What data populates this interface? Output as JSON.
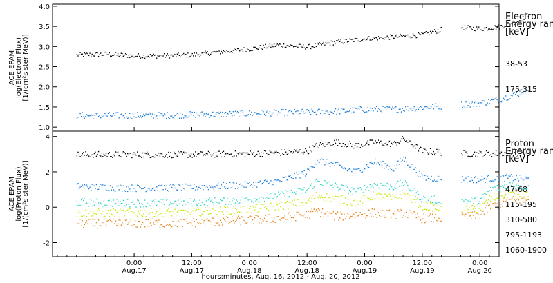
{
  "chart_data": [
    {
      "type": "scatter",
      "panel": "electron",
      "ylabel_lines": [
        "ACE EPAM",
        "log(Electron Flux)",
        "[1/(cm²s ster MeV)]"
      ],
      "legend_title": [
        "Electron",
        "Energy ranges",
        "[keV]"
      ],
      "ylim": [
        0.9,
        4.05
      ],
      "yticks": [
        1.0,
        1.5,
        2.0,
        2.5,
        3.0,
        3.5,
        4.0
      ],
      "ytick_labels": [
        "1.0",
        "1.5",
        "2.0",
        "2.5",
        "3.0",
        "3.5",
        "4.0"
      ],
      "series": [
        {
          "name": "38-53",
          "color": "#000000",
          "x": [
            0,
            6,
            12,
            18,
            24,
            30,
            36,
            42,
            48,
            54,
            60,
            66,
            72,
            78,
            84,
            88,
            92,
            94
          ],
          "y": [
            2.8,
            2.82,
            2.78,
            2.78,
            2.8,
            2.88,
            2.95,
            3.05,
            3.0,
            3.12,
            3.2,
            3.25,
            3.3,
            3.5,
            3.45,
            3.5,
            3.65,
            3.8
          ]
        },
        {
          "name": "175-315",
          "color": "#1f7fd6",
          "x": [
            0,
            6,
            12,
            18,
            24,
            30,
            36,
            42,
            48,
            54,
            60,
            66,
            72,
            78,
            84,
            88,
            92,
            94
          ],
          "y": [
            1.3,
            1.3,
            1.3,
            1.3,
            1.32,
            1.33,
            1.35,
            1.37,
            1.38,
            1.4,
            1.45,
            1.45,
            1.5,
            1.55,
            1.6,
            1.7,
            1.85,
            2.0
          ]
        }
      ]
    },
    {
      "type": "scatter",
      "panel": "proton",
      "ylabel_lines": [
        "ACE EPAM",
        "log(Proton Flux)",
        "[1/(cm²s ster MeV)]"
      ],
      "legend_title": [
        "Proton",
        "Energy ranges",
        "[keV]"
      ],
      "ylim": [
        -2.8,
        4.3
      ],
      "yticks": [
        -2,
        0,
        2,
        4
      ],
      "ytick_labels": [
        "-2",
        "0",
        "2",
        "4"
      ],
      "series": [
        {
          "name": "47-68",
          "color": "#000000",
          "x": [
            0,
            12,
            24,
            36,
            42,
            48,
            50,
            54,
            58,
            62,
            66,
            68,
            72,
            78,
            82,
            84,
            86,
            90,
            94
          ],
          "y": [
            3.0,
            3.0,
            3.0,
            3.05,
            3.1,
            3.2,
            3.5,
            3.7,
            3.5,
            3.7,
            3.6,
            3.9,
            3.2,
            3.1,
            3.05,
            3.05,
            3.05,
            3.1,
            3.2
          ]
        },
        {
          "name": "115-195",
          "color": "#1f7fd6",
          "x": [
            0,
            12,
            24,
            36,
            42,
            48,
            50,
            54,
            58,
            62,
            66,
            68,
            72,
            78,
            82,
            84,
            86,
            90,
            94
          ],
          "y": [
            1.2,
            1.1,
            1.15,
            1.3,
            1.5,
            2.0,
            2.7,
            2.4,
            2.0,
            2.6,
            2.2,
            2.8,
            1.7,
            1.6,
            1.6,
            1.6,
            1.65,
            1.7,
            1.6
          ]
        },
        {
          "name": "310-580",
          "color": "#2dd5c4",
          "x": [
            0,
            12,
            24,
            36,
            42,
            48,
            50,
            54,
            58,
            62,
            66,
            68,
            72,
            78,
            82,
            84,
            86,
            90,
            94
          ],
          "y": [
            0.3,
            0.25,
            0.3,
            0.45,
            0.7,
            1.0,
            1.5,
            1.2,
            0.9,
            1.3,
            1.2,
            1.4,
            0.5,
            0.4,
            0.4,
            0.4,
            1.0,
            1.3,
            1.2
          ]
        },
        {
          "name": "795-1193",
          "color": "#c5e800",
          "x": [
            0,
            12,
            24,
            36,
            42,
            48,
            50,
            54,
            58,
            62,
            66,
            68,
            72,
            78,
            82,
            84,
            86,
            90,
            94
          ],
          "y": [
            -0.3,
            -0.3,
            -0.25,
            -0.1,
            0.1,
            0.3,
            0.7,
            0.5,
            0.3,
            0.7,
            0.5,
            0.8,
            0.1,
            -0.1,
            -0.1,
            -0.05,
            0.5,
            0.8,
            0.7
          ]
        },
        {
          "name": "1060-1900",
          "color": "#e5861f",
          "x": [
            0,
            12,
            24,
            36,
            42,
            48,
            50,
            54,
            58,
            62,
            66,
            68,
            72,
            78,
            82,
            84,
            86,
            90,
            94
          ],
          "y": [
            -0.9,
            -0.9,
            -0.85,
            -0.7,
            -0.6,
            -0.4,
            -0.2,
            -0.5,
            -0.4,
            -0.3,
            -0.4,
            -0.3,
            -0.6,
            -0.6,
            -0.5,
            -0.4,
            0.0,
            0.4,
            0.4
          ]
        }
      ]
    }
  ],
  "x_axis": {
    "ticks": [
      {
        "top": "0:00",
        "bottom": "Aug.17"
      },
      {
        "top": "12:00",
        "bottom": "Aug.17"
      },
      {
        "top": "0:00",
        "bottom": "Aug.18"
      },
      {
        "top": "12:00",
        "bottom": "Aug.18"
      },
      {
        "top": "0:00",
        "bottom": "Aug.19"
      },
      {
        "top": "12:00",
        "bottom": "Aug.19"
      },
      {
        "top": "0:00",
        "bottom": "Aug.20"
      }
    ],
    "tick_hours": [
      24,
      36,
      48,
      60,
      72,
      84,
      96
    ],
    "xlim_hours": [
      24,
      96
    ],
    "xlabel": "hours:minutes, Aug. 16, 2012 - Aug. 20, 2012"
  }
}
